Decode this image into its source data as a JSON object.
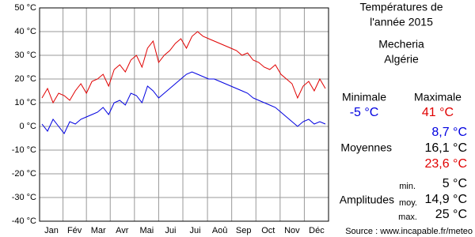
{
  "chart_data": {
    "type": "line",
    "xlim": [
      1,
      365
    ],
    "x": [
      4,
      11,
      18,
      25,
      32,
      39,
      46,
      53,
      60,
      67,
      74,
      81,
      88,
      95,
      102,
      109,
      116,
      123,
      130,
      137,
      144,
      151,
      158,
      165,
      172,
      179,
      186,
      193,
      200,
      207,
      214,
      221,
      228,
      235,
      242,
      249,
      256,
      263,
      270,
      277,
      284,
      291,
      298,
      305,
      312,
      319,
      326,
      333,
      340,
      347,
      354,
      361
    ],
    "xticks": [
      {
        "value": 16,
        "label": "Jan"
      },
      {
        "value": 45,
        "label": "Fév"
      },
      {
        "value": 75,
        "label": "Mar"
      },
      {
        "value": 105,
        "label": "Avr"
      },
      {
        "value": 136,
        "label": "Mai"
      },
      {
        "value": 166,
        "label": "Jui"
      },
      {
        "value": 197,
        "label": "Jui"
      },
      {
        "value": 228,
        "label": "Aoû"
      },
      {
        "value": 258,
        "label": "Sep"
      },
      {
        "value": 289,
        "label": "Oct"
      },
      {
        "value": 319,
        "label": "Nov"
      },
      {
        "value": 350,
        "label": "Déc"
      }
    ],
    "ylim": [
      -40,
      50
    ],
    "yticks": [
      {
        "value": -40,
        "label": "-40 °C"
      },
      {
        "value": -30,
        "label": "-30 °C"
      },
      {
        "value": -20,
        "label": "-20 °C"
      },
      {
        "value": -10,
        "label": "-10 °C"
      },
      {
        "value": 0,
        "label": "0 °C"
      },
      {
        "value": 10,
        "label": "10 °C"
      },
      {
        "value": 20,
        "label": "20 °C"
      },
      {
        "value": 30,
        "label": "30 °C"
      },
      {
        "value": 40,
        "label": "40 °C"
      },
      {
        "value": 50,
        "label": "50 °C"
      }
    ],
    "grid": true,
    "series": [
      {
        "color": "#e00000",
        "values": [
          12,
          16,
          10,
          14,
          13,
          11,
          15,
          18,
          14,
          19,
          20,
          22,
          17,
          24,
          26,
          23,
          28,
          30,
          25,
          33,
          36,
          27,
          30,
          32,
          35,
          37,
          33,
          38,
          40,
          38,
          37,
          36,
          35,
          34,
          33,
          32,
          30,
          31,
          28,
          27,
          25,
          24,
          26,
          22,
          20,
          18,
          12,
          17,
          19,
          15,
          20,
          16
        ]
      },
      {
        "color": "#0000e0",
        "values": [
          1,
          -2,
          3,
          0,
          -3,
          2,
          1,
          3,
          4,
          5,
          6,
          8,
          5,
          10,
          11,
          9,
          14,
          13,
          10,
          17,
          15,
          12,
          14,
          16,
          18,
          20,
          22,
          23,
          22,
          21,
          20,
          20,
          19,
          18,
          17,
          16,
          15,
          14,
          12,
          11,
          10,
          9,
          8,
          6,
          4,
          2,
          0,
          2,
          3,
          1,
          2,
          1
        ]
      }
    ]
  },
  "panel": {
    "title1": "Températures de",
    "title2": "l'année 2015",
    "city": "Mecheria",
    "country": "Algérie",
    "min_label": "Minimale",
    "max_label": "Maximale",
    "min_value": "-5 °C",
    "max_value": "41 °C",
    "avg_label": "Moyennes",
    "avg_min": "8,7 °C",
    "avg_all": "16,1 °C",
    "avg_max": "23,6 °C",
    "amp_label": "Amplitudes",
    "amp_min_label": "min.",
    "amp_min": "5 °C",
    "amp_avg_label": "moy.",
    "amp_avg": "14,9 °C",
    "amp_max_label": "max.",
    "amp_max": "25 °C",
    "source": "Source : www.incapable.fr/meteo"
  }
}
